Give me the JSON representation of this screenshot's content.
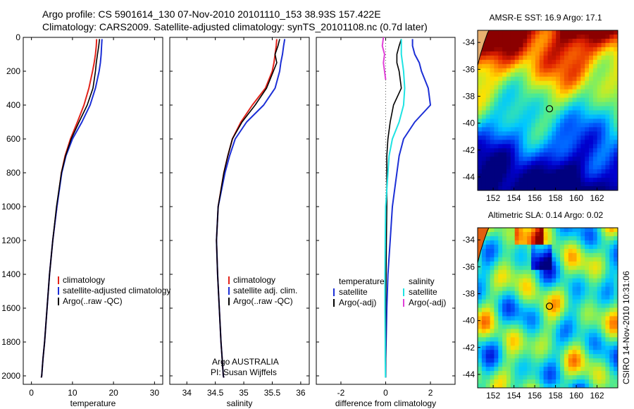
{
  "title": {
    "line1": "Argo profile: CS 5901614_130 07-Nov-2010 20101110_153 38.93S 157.422E",
    "line2": "Climatology: CARS2009. Satellite-adjusted climatology: synTS_20101108.nc (0.7d later)"
  },
  "side_label": "CSIRO 14-Nov-2010 10:31:06",
  "colors": {
    "climatology": "#e2231a",
    "satellite": "#1c2fd6",
    "argo": "#000000",
    "salinity_sat": "#1ee3e3",
    "salinity_argo": "#e040d8"
  },
  "chart_data": [
    {
      "type": "line",
      "xlabel": "temperature",
      "ylabel": "",
      "xlim": [
        -2,
        32
      ],
      "ylim": [
        2050,
        0
      ],
      "xticks": [
        0,
        10,
        20,
        30
      ],
      "yticks": [
        0,
        200,
        400,
        600,
        800,
        1000,
        1200,
        1400,
        1600,
        1800,
        2000
      ],
      "legend": [
        "climatology",
        "satellite-adjusted climatology",
        "Argo(..raw -QC)"
      ],
      "series": [
        {
          "name": "climatology",
          "color": "#e2231a",
          "width": 2,
          "x": [
            15.9,
            15.8,
            15.6,
            15.3,
            14.9,
            14.0,
            12.8,
            11.2,
            9.5,
            8.2,
            7.3,
            6.2,
            5.2,
            4.4,
            3.8,
            3.2,
            2.8,
            2.5,
            2.4
          ],
          "y": [
            10,
            50,
            100,
            150,
            200,
            300,
            400,
            500,
            600,
            700,
            800,
            1000,
            1200,
            1400,
            1600,
            1800,
            1900,
            2000,
            2010
          ]
        },
        {
          "name": "satellite-adjusted climatology",
          "color": "#1c2fd6",
          "width": 2,
          "x": [
            17.2,
            17.1,
            17.0,
            16.8,
            16.5,
            15.6,
            14.3,
            12.3,
            10.0,
            8.4,
            7.4,
            6.2,
            5.2,
            4.4,
            3.8,
            3.2,
            2.8,
            2.5,
            2.4
          ],
          "y": [
            10,
            50,
            100,
            150,
            200,
            300,
            400,
            500,
            600,
            700,
            800,
            1000,
            1200,
            1400,
            1600,
            1800,
            1900,
            2000,
            2010
          ]
        },
        {
          "name": "Argo(..raw -QC)",
          "color": "#000000",
          "width": 1.6,
          "x": [
            16.6,
            16.4,
            16.1,
            15.8,
            15.6,
            15.0,
            13.6,
            11.6,
            9.7,
            8.3,
            7.3,
            6.1,
            5.2,
            4.4,
            3.8,
            3.2,
            2.8,
            2.5,
            2.4
          ],
          "y": [
            10,
            50,
            100,
            150,
            200,
            300,
            400,
            500,
            600,
            700,
            800,
            1000,
            1200,
            1400,
            1600,
            1800,
            1900,
            2000,
            2010
          ]
        }
      ]
    },
    {
      "type": "line",
      "xlabel": "salinity",
      "ylabel": "",
      "xlim": [
        33.7,
        36.15
      ],
      "ylim": [
        2050,
        0
      ],
      "xticks": [
        34,
        34.5,
        35,
        35.5,
        36
      ],
      "yticks": [],
      "legend": [
        "climatology",
        "satellite adj. clim.",
        "Argo(..raw -QC)"
      ],
      "annotation": [
        "Argo AUSTRALIA",
        "PI: Susan Wijffels"
      ],
      "series": [
        {
          "name": "climatology",
          "color": "#e2231a",
          "width": 2,
          "x": [
            35.58,
            35.57,
            35.55,
            35.53,
            35.5,
            35.38,
            35.15,
            34.95,
            34.8,
            34.72,
            34.65,
            34.55,
            34.52,
            34.54,
            34.57,
            34.6,
            34.62,
            34.64,
            34.65
          ],
          "y": [
            10,
            50,
            100,
            150,
            200,
            300,
            400,
            500,
            600,
            700,
            800,
            1000,
            1200,
            1400,
            1600,
            1800,
            1900,
            2000,
            2010
          ]
        },
        {
          "name": "satellite adj. clim.",
          "color": "#1c2fd6",
          "width": 2,
          "x": [
            35.72,
            35.7,
            35.68,
            35.65,
            35.63,
            35.55,
            35.35,
            35.05,
            34.85,
            34.75,
            34.67,
            34.55,
            34.52,
            34.54,
            34.57,
            34.6,
            34.62,
            34.64,
            34.65
          ],
          "y": [
            10,
            50,
            100,
            150,
            200,
            300,
            400,
            500,
            600,
            700,
            800,
            1000,
            1200,
            1400,
            1600,
            1800,
            1900,
            2000,
            2010
          ]
        },
        {
          "name": "Argo(..raw -QC)",
          "color": "#000000",
          "width": 1.6,
          "x": [
            35.63,
            35.6,
            35.55,
            35.58,
            35.52,
            35.4,
            35.2,
            34.97,
            34.8,
            34.72,
            34.65,
            34.55,
            34.52,
            34.54,
            34.57,
            34.6,
            34.62,
            34.64,
            34.65
          ],
          "y": [
            10,
            50,
            100,
            150,
            200,
            300,
            400,
            500,
            600,
            700,
            800,
            1000,
            1200,
            1400,
            1600,
            1800,
            1900,
            2000,
            2010
          ]
        }
      ]
    },
    {
      "type": "line",
      "xlabel": "difference from climatology",
      "ylabel": "",
      "xlim": [
        -3.1,
        3.1
      ],
      "ylim": [
        2050,
        0
      ],
      "xticks": [
        -2,
        0,
        2
      ],
      "yticks": [],
      "legend_groups": [
        {
          "header": "temperature",
          "items": [
            "satellite",
            "Argo(-adj)"
          ]
        },
        {
          "header": "salinity",
          "items": [
            "satellite",
            "Argo(-adj)"
          ]
        }
      ],
      "series": [
        {
          "name": "temperature satellite",
          "color": "#1c2fd6",
          "width": 2,
          "x": [
            1.2,
            1.2,
            1.3,
            1.5,
            1.6,
            1.9,
            2.0,
            1.3,
            0.8,
            0.6,
            0.5,
            0.3,
            0.2,
            0.1,
            0.05,
            0.02,
            0.0,
            0.0,
            0.0
          ],
          "y": [
            10,
            50,
            100,
            150,
            200,
            300,
            400,
            500,
            600,
            700,
            800,
            1000,
            1200,
            1400,
            1600,
            1800,
            1900,
            2000,
            2010
          ]
        },
        {
          "name": "temperature Argo(-adj)",
          "color": "#000000",
          "width": 1.6,
          "x": [
            0.7,
            0.6,
            0.5,
            0.5,
            0.6,
            0.7,
            0.35,
            0.2,
            0.1,
            0.05,
            0.05,
            0.05,
            0.03,
            0.02,
            0.0,
            0.0,
            0.0,
            0.0,
            0.0
          ],
          "y": [
            10,
            50,
            100,
            150,
            200,
            300,
            400,
            500,
            600,
            700,
            800,
            1000,
            1200,
            1400,
            1600,
            1800,
            1900,
            2000,
            2010
          ]
        },
        {
          "name": "salinity satellite",
          "color": "#1ee3e3",
          "width": 2,
          "x": [
            0.7,
            0.7,
            0.7,
            0.75,
            0.8,
            0.85,
            0.8,
            0.6,
            0.3,
            0.15,
            0.1,
            0.0,
            -0.02,
            -0.03,
            -0.03,
            -0.02,
            -0.02,
            -0.01,
            -0.01
          ],
          "y": [
            10,
            50,
            100,
            150,
            200,
            300,
            400,
            500,
            600,
            700,
            800,
            1000,
            1200,
            1400,
            1600,
            1800,
            1900,
            2000,
            2010
          ]
        },
        {
          "name": "salinity Argo(-adj)",
          "color": "#e040d8",
          "width": 2,
          "x": [
            -0.1,
            -0.15,
            -0.05,
            -0.1,
            -0.05,
            0.0
          ],
          "y": [
            0,
            50,
            100,
            150,
            200,
            250
          ]
        }
      ]
    },
    {
      "type": "heatmap",
      "title": "AMSR-E SST: 16.9 Argo: 17.1",
      "xlim": [
        150.5,
        164
      ],
      "ylim": [
        -45,
        -33.1
      ],
      "xticks": [
        152,
        154,
        156,
        158,
        160,
        162
      ],
      "yticks": [
        -34,
        -36,
        -38,
        -40,
        -42,
        -44
      ],
      "marker": {
        "lon": 157.42,
        "lat": -38.93
      }
    },
    {
      "type": "heatmap",
      "title": "Altimetric SLA: 0.14 Argo: 0.02",
      "xlim": [
        150.5,
        164
      ],
      "ylim": [
        -45,
        -33.1
      ],
      "xticks": [
        152,
        154,
        156,
        158,
        160,
        162
      ],
      "yticks": [
        -34,
        -36,
        -38,
        -40,
        -42,
        -44
      ],
      "marker": {
        "lon": 157.42,
        "lat": -38.93
      }
    }
  ]
}
